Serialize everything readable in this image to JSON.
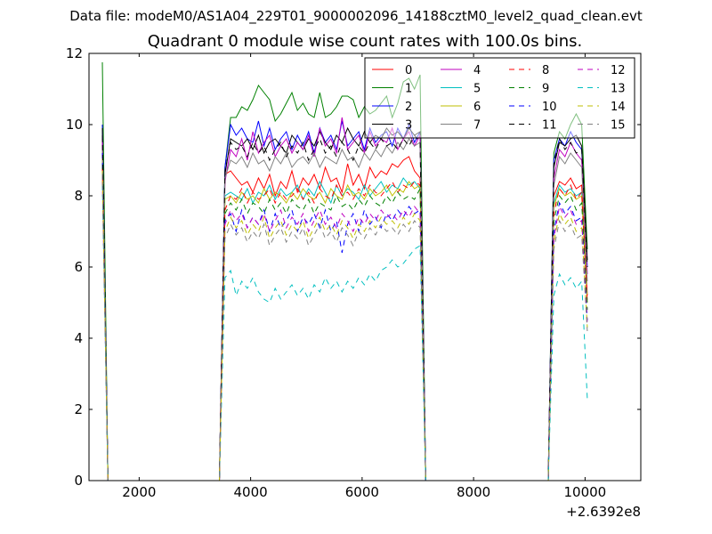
{
  "figure": {
    "suptitle": "Data file: modeM0/AS1A04_229T01_9000002096_14188cztM0_level2_quad_clean.evt"
  },
  "chart_data": {
    "type": "line",
    "title": "Quadrant 0 module wise count rates with 100.0s bins.",
    "xlabel": "",
    "ylabel": "",
    "xlim": [
      1100,
      11000
    ],
    "ylim": [
      0,
      12
    ],
    "x_offset_label": "+2.6392e8",
    "xticks": [
      2000,
      4000,
      6000,
      8000,
      10000
    ],
    "xtick_labels": [
      "2000",
      "4000",
      "6000",
      "8000",
      "10000"
    ],
    "yticks": [
      0,
      2,
      4,
      6,
      8,
      10,
      12
    ],
    "ytick_labels": [
      "0",
      "2",
      "4",
      "6",
      "8",
      "10",
      "12"
    ],
    "legend_position": "top-right",
    "x": [
      1340,
      1440,
      1540,
      3440,
      3540,
      3640,
      3740,
      3840,
      3940,
      4040,
      4140,
      4240,
      4340,
      4440,
      4540,
      4640,
      4740,
      4840,
      4940,
      5040,
      5140,
      5240,
      5340,
      5440,
      5540,
      5640,
      5740,
      5840,
      5940,
      6040,
      6140,
      6240,
      6340,
      6440,
      6540,
      6640,
      6740,
      6840,
      6940,
      7040,
      7140,
      7240,
      7340,
      9340,
      9440,
      9540,
      9640,
      9740,
      9840,
      9940,
      10040
    ],
    "series": [
      {
        "name": "0",
        "color": "#ff0000",
        "dash": "solid",
        "values": [
          9.6,
          0,
          0,
          0,
          8.6,
          8.7,
          8.5,
          8.3,
          8.4,
          8.1,
          8.5,
          8.2,
          8.6,
          8.0,
          8.4,
          8.2,
          8.7,
          8.1,
          8.5,
          8.3,
          8.6,
          8.2,
          8.8,
          8.4,
          8.5,
          8.1,
          8.9,
          8.3,
          8.6,
          8.2,
          8.8,
          8.5,
          8.7,
          8.6,
          8.9,
          8.8,
          9.0,
          9.1,
          8.7,
          8.5,
          0,
          0,
          0,
          0,
          8.0,
          8.4,
          8.3,
          8.5,
          8.2,
          8.3,
          5.2
        ]
      },
      {
        "name": "1",
        "color": "#008000",
        "dash": "solid",
        "values": [
          11.75,
          0,
          0,
          0,
          8.8,
          10.2,
          10.2,
          10.5,
          10.4,
          10.7,
          11.1,
          10.9,
          10.7,
          10.1,
          10.3,
          10.6,
          10.9,
          10.4,
          10.6,
          10.3,
          10.2,
          10.9,
          10.2,
          10.3,
          10.5,
          10.8,
          10.8,
          10.7,
          10.2,
          10.5,
          10.3,
          10.4,
          10.6,
          10.8,
          10.2,
          10.6,
          11.2,
          11.3,
          11.0,
          11.4,
          0,
          0,
          0,
          0,
          9.2,
          9.8,
          9.6,
          10.0,
          10.3,
          10.0,
          6.5
        ]
      },
      {
        "name": "2",
        "color": "#0000ff",
        "dash": "solid",
        "values": [
          10.0,
          0,
          0,
          0,
          8.8,
          10.0,
          9.7,
          9.9,
          9.6,
          9.5,
          10.1,
          9.4,
          9.9,
          9.3,
          9.6,
          9.8,
          9.3,
          9.7,
          9.4,
          9.8,
          9.2,
          9.9,
          9.5,
          9.7,
          9.3,
          10.1,
          9.4,
          9.6,
          9.8,
          9.3,
          9.9,
          9.5,
          9.7,
          9.8,
          9.4,
          9.9,
          9.6,
          10.0,
          9.5,
          9.8,
          0,
          0,
          0,
          0,
          9.0,
          9.6,
          9.4,
          9.8,
          9.5,
          9.3,
          6.0
        ]
      },
      {
        "name": "3",
        "color": "#000000",
        "dash": "solid",
        "values": [
          9.9,
          0,
          0,
          0,
          8.6,
          9.6,
          9.5,
          9.4,
          9.6,
          9.3,
          9.7,
          9.2,
          9.5,
          9.6,
          9.4,
          9.2,
          9.7,
          9.5,
          9.3,
          9.6,
          9.4,
          9.8,
          9.5,
          9.3,
          9.7,
          9.5,
          9.9,
          9.6,
          9.4,
          9.8,
          9.5,
          9.7,
          9.6,
          9.9,
          9.7,
          9.8,
          9.6,
          9.9,
          9.7,
          9.8,
          0,
          0,
          0,
          0,
          8.8,
          9.5,
          9.4,
          9.6,
          9.7,
          9.4,
          6.2
        ]
      },
      {
        "name": "4",
        "color": "#bf00bf",
        "dash": "solid",
        "values": [
          9.5,
          0,
          0,
          0,
          8.4,
          9.3,
          9.1,
          9.6,
          9.0,
          9.8,
          9.2,
          9.5,
          9.7,
          9.1,
          9.4,
          9.6,
          9.2,
          9.5,
          9.3,
          9.7,
          9.1,
          9.9,
          9.4,
          9.6,
          9.2,
          10.2,
          9.3,
          9.5,
          9.7,
          9.2,
          9.8,
          9.4,
          9.6,
          9.5,
          9.9,
          9.3,
          9.6,
          9.8,
          9.4,
          9.7,
          0,
          0,
          0,
          0,
          8.5,
          9.3,
          9.1,
          9.5,
          9.2,
          9.0,
          5.8
        ]
      },
      {
        "name": "5",
        "color": "#00bfbf",
        "dash": "solid",
        "values": [
          9.0,
          0,
          0,
          0,
          8.0,
          8.1,
          8.0,
          7.9,
          8.2,
          7.8,
          8.1,
          8.0,
          8.3,
          7.9,
          8.2,
          8.0,
          8.1,
          8.3,
          7.9,
          8.2,
          8.0,
          8.4,
          8.1,
          7.8,
          8.3,
          8.0,
          8.2,
          8.1,
          7.9,
          8.3,
          8.0,
          8.2,
          8.4,
          8.1,
          8.3,
          8.2,
          8.5,
          8.3,
          8.4,
          8.2,
          0,
          0,
          0,
          0,
          7.8,
          8.3,
          8.1,
          8.2,
          8.0,
          8.1,
          5.0
        ]
      },
      {
        "name": "6",
        "color": "#bfbf00",
        "dash": "solid",
        "values": [
          9.1,
          0,
          0,
          0,
          7.9,
          8.0,
          7.8,
          8.1,
          7.9,
          8.0,
          7.8,
          8.2,
          7.9,
          8.1,
          8.0,
          7.8,
          8.1,
          7.9,
          8.2,
          8.0,
          7.9,
          8.1,
          7.8,
          8.2,
          8.0,
          7.9,
          8.3,
          8.0,
          8.1,
          7.9,
          8.2,
          8.0,
          8.1,
          8.3,
          8.0,
          8.2,
          8.1,
          8.4,
          8.2,
          8.3,
          0,
          0,
          0,
          0,
          7.7,
          8.2,
          8.0,
          8.1,
          7.9,
          8.0,
          5.0
        ]
      },
      {
        "name": "7",
        "color": "#808080",
        "dash": "solid",
        "values": [
          9.3,
          0,
          0,
          0,
          8.5,
          9.0,
          8.9,
          9.1,
          8.8,
          9.2,
          8.9,
          9.0,
          8.7,
          9.1,
          8.9,
          9.2,
          8.8,
          9.0,
          9.1,
          8.9,
          9.2,
          8.8,
          9.1,
          9.0,
          8.9,
          9.3,
          9.0,
          9.1,
          8.8,
          9.2,
          9.0,
          9.3,
          9.1,
          9.4,
          9.2,
          9.5,
          9.3,
          9.6,
          9.4,
          9.5,
          0,
          0,
          0,
          0,
          8.3,
          9.1,
          8.9,
          9.2,
          9.0,
          8.8,
          5.6
        ]
      },
      {
        "name": "8",
        "color": "#ff0000",
        "dash": "dashed",
        "values": [
          8.8,
          0,
          0,
          0,
          7.6,
          8.0,
          7.9,
          8.2,
          7.8,
          8.1,
          7.9,
          8.0,
          8.2,
          7.8,
          8.1,
          7.9,
          8.0,
          8.2,
          7.9,
          8.1,
          7.8,
          8.2,
          8.0,
          7.9,
          8.3,
          8.0,
          8.1,
          7.9,
          8.2,
          8.0,
          8.3,
          8.1,
          8.0,
          8.2,
          8.4,
          8.1,
          8.3,
          8.2,
          8.4,
          8.3,
          0,
          0,
          0,
          0,
          7.5,
          8.2,
          8.0,
          8.3,
          7.9,
          8.1,
          5.0
        ]
      },
      {
        "name": "9",
        "color": "#008000",
        "dash": "dashed",
        "values": [
          8.9,
          0,
          0,
          0,
          7.5,
          7.8,
          7.6,
          7.9,
          7.5,
          7.8,
          7.7,
          7.5,
          7.9,
          7.6,
          7.8,
          7.5,
          7.9,
          7.7,
          7.6,
          7.9,
          7.5,
          7.8,
          7.7,
          7.6,
          8.0,
          7.7,
          7.8,
          7.6,
          7.9,
          7.7,
          8.0,
          7.8,
          7.7,
          8.0,
          7.8,
          8.1,
          7.9,
          8.0,
          7.9,
          8.2,
          0,
          0,
          0,
          0,
          7.3,
          8.0,
          7.8,
          8.0,
          7.6,
          7.8,
          4.8
        ]
      },
      {
        "name": "10",
        "color": "#0000ff",
        "dash": "dashed",
        "values": [
          9.2,
          0,
          0,
          0,
          7.3,
          7.5,
          7.0,
          7.6,
          7.1,
          7.4,
          7.2,
          7.6,
          7.0,
          7.5,
          7.1,
          7.3,
          7.6,
          7.0,
          7.4,
          7.2,
          7.5,
          7.1,
          7.6,
          7.0,
          7.3,
          6.4,
          7.2,
          7.5,
          7.0,
          7.6,
          7.2,
          7.4,
          7.1,
          7.5,
          7.3,
          7.6,
          7.4,
          7.7,
          7.5,
          7.6,
          0,
          0,
          0,
          0,
          7.0,
          7.8,
          7.5,
          7.7,
          7.3,
          7.4,
          4.5
        ]
      },
      {
        "name": "11",
        "color": "#000000",
        "dash": "dashed",
        "values": [
          9.7,
          0,
          0,
          0,
          8.7,
          9.5,
          9.3,
          9.4,
          9.1,
          9.5,
          9.2,
          9.4,
          9.0,
          9.3,
          9.5,
          9.1,
          9.4,
          9.2,
          9.5,
          9.0,
          9.3,
          9.6,
          9.2,
          9.4,
          9.1,
          9.5,
          9.3,
          9.0,
          9.4,
          9.2,
          9.5,
          9.3,
          9.6,
          9.4,
          9.5,
          9.3,
          9.6,
          9.4,
          9.7,
          9.5,
          0,
          0,
          0,
          0,
          8.9,
          9.6,
          9.3,
          9.5,
          9.2,
          9.3,
          6.0
        ]
      },
      {
        "name": "12",
        "color": "#bf00bf",
        "dash": "dashed",
        "values": [
          8.4,
          0,
          0,
          0,
          7.2,
          7.6,
          7.3,
          7.5,
          7.1,
          7.4,
          7.2,
          7.5,
          7.0,
          7.3,
          7.6,
          7.1,
          7.4,
          7.2,
          7.5,
          7.0,
          7.3,
          7.6,
          7.2,
          7.4,
          7.1,
          7.5,
          7.3,
          7.0,
          7.4,
          7.2,
          7.5,
          7.3,
          7.6,
          7.4,
          7.5,
          7.3,
          7.6,
          7.4,
          7.7,
          7.5,
          0,
          0,
          0,
          0,
          6.8,
          7.7,
          7.4,
          7.6,
          7.2,
          7.3,
          4.4
        ]
      },
      {
        "name": "13",
        "color": "#00bfbf",
        "dash": "dashed",
        "values": [
          8.3,
          0,
          0,
          0,
          5.7,
          5.9,
          5.2,
          5.6,
          5.4,
          5.7,
          5.3,
          5.1,
          5.0,
          5.4,
          5.1,
          5.3,
          5.5,
          5.2,
          5.4,
          5.1,
          5.5,
          5.3,
          5.7,
          5.4,
          5.6,
          5.3,
          5.6,
          5.4,
          5.7,
          5.5,
          5.8,
          5.6,
          5.9,
          6.0,
          6.2,
          6.0,
          6.1,
          6.3,
          6.5,
          6.6,
          0,
          0,
          0,
          0,
          5.2,
          5.8,
          5.5,
          5.7,
          5.4,
          5.6,
          2.3
        ]
      },
      {
        "name": "14",
        "color": "#bfbf00",
        "dash": "dashed",
        "values": [
          8.7,
          0,
          0,
          0,
          7.0,
          7.4,
          7.1,
          7.3,
          6.9,
          7.2,
          7.0,
          7.4,
          6.8,
          7.1,
          7.3,
          6.9,
          7.2,
          7.0,
          7.3,
          6.8,
          7.1,
          7.4,
          7.0,
          7.2,
          6.9,
          7.3,
          7.1,
          6.8,
          7.2,
          7.0,
          7.3,
          7.1,
          7.4,
          7.2,
          7.3,
          7.1,
          7.4,
          7.2,
          7.5,
          7.3,
          0,
          0,
          0,
          0,
          6.7,
          7.5,
          7.2,
          7.4,
          7.0,
          7.1,
          4.3
        ]
      },
      {
        "name": "15",
        "color": "#808080",
        "dash": "dashed",
        "values": [
          8.6,
          0,
          0,
          0,
          6.8,
          7.2,
          6.9,
          7.1,
          6.7,
          7.0,
          6.8,
          7.2,
          6.6,
          6.9,
          7.1,
          6.7,
          7.0,
          6.8,
          7.1,
          6.6,
          6.9,
          7.2,
          6.8,
          7.0,
          6.7,
          7.1,
          6.9,
          6.6,
          7.0,
          6.8,
          7.1,
          6.9,
          7.2,
          7.0,
          7.1,
          6.9,
          7.2,
          7.0,
          7.3,
          7.1,
          0,
          0,
          0,
          0,
          6.5,
          7.3,
          7.0,
          7.2,
          6.8,
          6.9,
          4.2
        ]
      }
    ]
  }
}
